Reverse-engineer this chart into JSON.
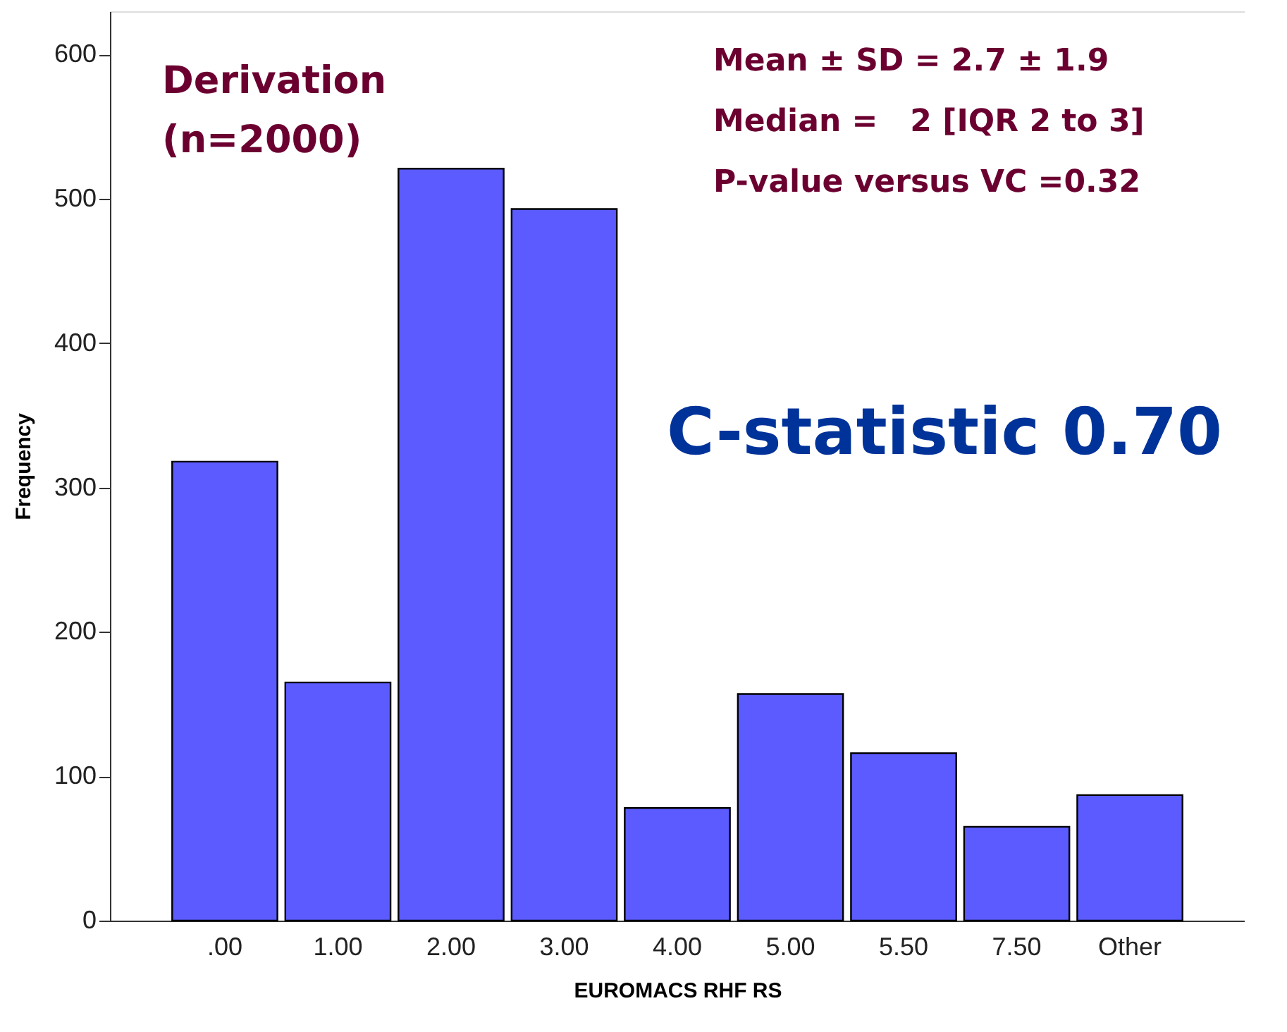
{
  "chart_data": {
    "type": "bar",
    "xlabel": "EUROMACS RHF RS",
    "ylabel": "Frequency",
    "categories": [
      ".00",
      "1.00",
      "2.00",
      "3.00",
      "4.00",
      "5.00",
      "5.50",
      "7.50",
      "Other"
    ],
    "values": [
      318,
      165,
      521,
      493,
      78,
      157,
      116,
      65,
      87
    ],
    "color": "#5b5bff",
    "ylim": [
      0,
      630
    ],
    "yticks": [
      0,
      100,
      200,
      300,
      400,
      500,
      600
    ],
    "grid": false,
    "annotations": [
      "Derivation",
      "(n=2000)",
      "Mean ± SD = 2.7 ± 1.9",
      "Median =   2 [IQR 2 to 3]",
      "P-value versus VC =0.32",
      "C-statistic 0.70"
    ]
  }
}
